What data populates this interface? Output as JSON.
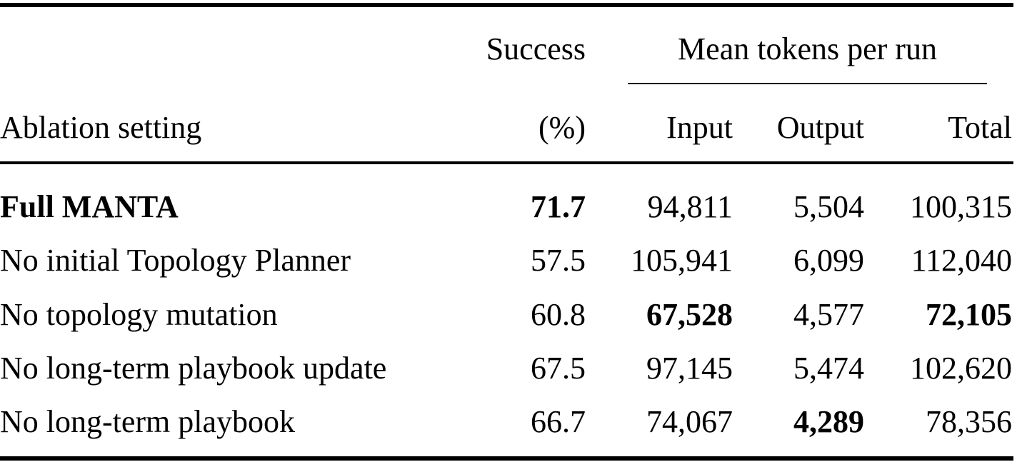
{
  "table": {
    "header": {
      "success_top": "Success",
      "tokens_group": "Mean tokens per run",
      "setting": "Ablation setting",
      "success_bottom": "(%)",
      "input": "Input",
      "output": "Output",
      "total": "Total"
    },
    "rows": [
      {
        "setting": "Full MANTA",
        "success": "71.7",
        "input": "94,811",
        "output": "5,504",
        "total": "100,315"
      },
      {
        "setting": "No initial Topology Planner",
        "success": "57.5",
        "input": "105,941",
        "output": "6,099",
        "total": "112,040"
      },
      {
        "setting": "No topology mutation",
        "success": "60.8",
        "input": "67,528",
        "output": "4,577",
        "total": "72,105"
      },
      {
        "setting": "No long-term playbook update",
        "success": "67.5",
        "input": "97,145",
        "output": "5,474",
        "total": "102,620"
      },
      {
        "setting": "No long-term playbook",
        "success": "66.7",
        "input": "74,067",
        "output": "4,289",
        "total": "78,356"
      }
    ]
  }
}
